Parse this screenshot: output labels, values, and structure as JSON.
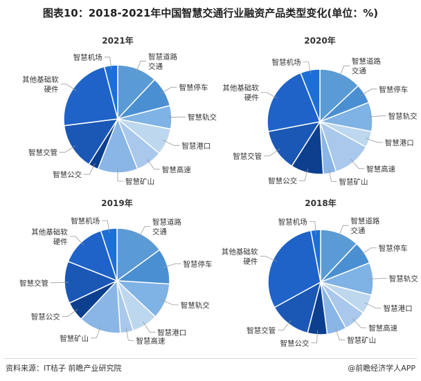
{
  "title": "图表10：2018-2021年中国智慧交通行业融资产品类型变化(单位：%)",
  "footer": {
    "source": "资料来源：IT桔子 前瞻产业研究院",
    "brand": "@前瞻经济学人APP"
  },
  "colors": {
    "palette": [
      "#5b9bd5",
      "#4a8fd2",
      "#7fb2e5",
      "#bdd7ee",
      "#a9c8eb",
      "#8ab6e6",
      "#0d3f8f",
      "#1b57b5",
      "#1f63c8",
      "#1c6fd6"
    ]
  },
  "chart_data": [
    {
      "type": "pie",
      "title": "2021年",
      "categories": [
        "智慧道路交通",
        "智慧停车",
        "智慧轨交",
        "智慧港口",
        "智慧高速",
        "智慧矿山",
        "智慧公交",
        "智慧交管",
        "其他基础软硬件",
        "智慧机场"
      ],
      "values": [
        12,
        9,
        7,
        8,
        8,
        12,
        3,
        14,
        23,
        4
      ]
    },
    {
      "type": "pie",
      "title": "2020年",
      "categories": [
        "智慧道路交通",
        "智慧停车",
        "智慧轨交",
        "智慧港口",
        "智慧高速",
        "智慧矿山",
        "智慧公交",
        "智慧交管",
        "其他基础软硬件",
        "智慧机场"
      ],
      "values": [
        13,
        6,
        9,
        5,
        12,
        4,
        10,
        13,
        22,
        6
      ]
    },
    {
      "type": "pie",
      "title": "2019年",
      "categories": [
        "智慧道路交通",
        "智慧停车",
        "智慧轨交",
        "智慧港口",
        "智慧高速",
        "智慧矿山",
        "智慧公交",
        "智慧交管",
        "其他基础软硬件",
        "智慧机场"
      ],
      "values": [
        15,
        11,
        11,
        8,
        4,
        13,
        6,
        13,
        14,
        5
      ]
    },
    {
      "type": "pie",
      "title": "2018年",
      "categories": [
        "智慧道路交通",
        "智慧停车",
        "智慧轨交",
        "智慧港口",
        "智慧高速",
        "智慧矿山",
        "智慧公交",
        "智慧交管",
        "其他基础软硬件",
        "智慧机场"
      ],
      "values": [
        12,
        7,
        10,
        6,
        7,
        6,
        6,
        13,
        30,
        3
      ]
    }
  ]
}
